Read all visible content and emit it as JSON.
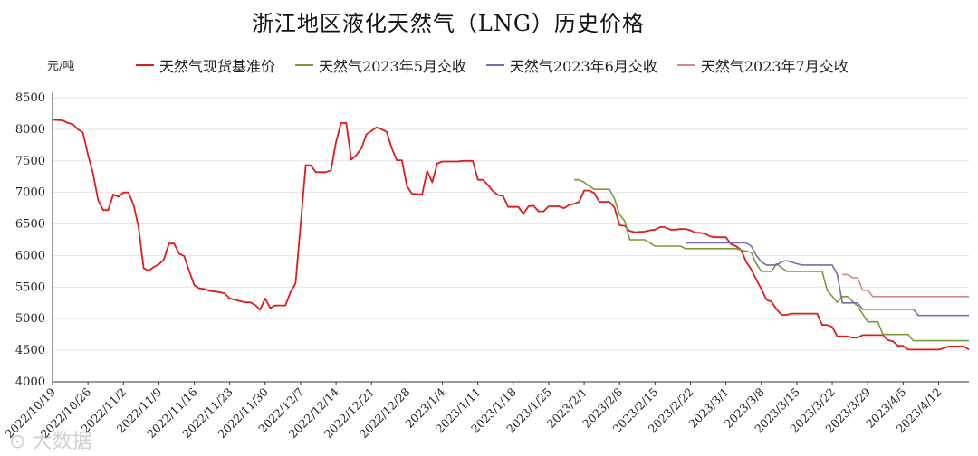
{
  "title": "浙江地区液化天然气（LNG）历史价格",
  "watermark": "⊙ 大数据",
  "chart_data": {
    "type": "line",
    "title": "浙江地区液化天然气（LNG）历史价格",
    "ylabel": "元/吨",
    "ylim": [
      4000,
      8500
    ],
    "xlim": [
      "2022-10-19",
      "2023-04-18"
    ],
    "yticks": [
      4000,
      4500,
      5000,
      5500,
      6000,
      6500,
      7000,
      7500,
      8000,
      8500
    ],
    "xticks": [
      "2022/10/19",
      "2022/10/26",
      "2022/11/2",
      "2022/11/9",
      "2022/11/16",
      "2022/11/23",
      "2022/11/30",
      "2022/12/7",
      "2022/12/14",
      "2022/12/21",
      "2022/12/28",
      "2023/1/4",
      "2023/1/11",
      "2023/1/18",
      "2023/1/25",
      "2023/2/1",
      "2023/2/8",
      "2023/2/15",
      "2023/2/22",
      "2023/3/1",
      "2023/3/8",
      "2023/3/15",
      "2023/3/22",
      "2023/3/29",
      "2023/4/5",
      "2023/4/12"
    ],
    "xtick_dates": [
      "2022-10-19",
      "2022-10-26",
      "2022-11-02",
      "2022-11-09",
      "2022-11-16",
      "2022-11-23",
      "2022-11-30",
      "2022-12-07",
      "2022-12-14",
      "2022-12-21",
      "2022-12-28",
      "2023-01-04",
      "2023-01-11",
      "2023-01-18",
      "2023-01-25",
      "2023-02-01",
      "2023-02-08",
      "2023-02-15",
      "2023-02-22",
      "2023-03-01",
      "2023-03-08",
      "2023-03-15",
      "2023-03-22",
      "2023-03-29",
      "2023-04-05",
      "2023-04-12"
    ],
    "grid": "horizontal",
    "legend_position": "top",
    "series": [
      {
        "name": "天然气现货基准价",
        "color": "#e01b1b",
        "points": [
          [
            "2022-10-19",
            8150
          ],
          [
            "2022-10-21",
            8140
          ],
          [
            "2022-10-22",
            8100
          ],
          [
            "2022-10-23",
            8080
          ],
          [
            "2022-10-24",
            8000
          ],
          [
            "2022-10-25",
            7950
          ],
          [
            "2022-10-26",
            7600
          ],
          [
            "2022-10-27",
            7300
          ],
          [
            "2022-10-28",
            6880
          ],
          [
            "2022-10-29",
            6720
          ],
          [
            "2022-10-30",
            6720
          ],
          [
            "2022-10-31",
            6970
          ],
          [
            "2022-11-01",
            6930
          ],
          [
            "2022-11-02",
            7000
          ],
          [
            "2022-11-03",
            7000
          ],
          [
            "2022-11-04",
            6800
          ],
          [
            "2022-11-05",
            6450
          ],
          [
            "2022-11-06",
            5800
          ],
          [
            "2022-11-07",
            5760
          ],
          [
            "2022-11-08",
            5820
          ],
          [
            "2022-11-09",
            5860
          ],
          [
            "2022-11-10",
            5940
          ],
          [
            "2022-11-11",
            6190
          ],
          [
            "2022-11-12",
            6190
          ],
          [
            "2022-11-13",
            6030
          ],
          [
            "2022-11-14",
            5990
          ],
          [
            "2022-11-15",
            5750
          ],
          [
            "2022-11-16",
            5530
          ],
          [
            "2022-11-17",
            5480
          ],
          [
            "2022-11-18",
            5470
          ],
          [
            "2022-11-19",
            5440
          ],
          [
            "2022-11-20",
            5430
          ],
          [
            "2022-11-21",
            5420
          ],
          [
            "2022-11-22",
            5400
          ],
          [
            "2022-11-23",
            5320
          ],
          [
            "2022-11-24",
            5300
          ],
          [
            "2022-11-25",
            5280
          ],
          [
            "2022-11-26",
            5260
          ],
          [
            "2022-11-27",
            5260
          ],
          [
            "2022-11-28",
            5220
          ],
          [
            "2022-11-29",
            5140
          ],
          [
            "2022-11-30",
            5320
          ],
          [
            "2022-12-01",
            5170
          ],
          [
            "2022-12-02",
            5210
          ],
          [
            "2022-12-03",
            5210
          ],
          [
            "2022-12-04",
            5210
          ],
          [
            "2022-12-05",
            5420
          ],
          [
            "2022-12-06",
            5560
          ],
          [
            "2022-12-07",
            6500
          ],
          [
            "2022-12-08",
            7430
          ],
          [
            "2022-12-09",
            7430
          ],
          [
            "2022-12-10",
            7320
          ],
          [
            "2022-12-12",
            7320
          ],
          [
            "2022-12-13",
            7350
          ],
          [
            "2022-12-14",
            7800
          ],
          [
            "2022-12-15",
            8100
          ],
          [
            "2022-12-16",
            8100
          ],
          [
            "2022-12-17",
            7520
          ],
          [
            "2022-12-18",
            7590
          ],
          [
            "2022-12-19",
            7700
          ],
          [
            "2022-12-20",
            7920
          ],
          [
            "2022-12-22",
            8030
          ],
          [
            "2022-12-23",
            8000
          ],
          [
            "2022-12-24",
            7960
          ],
          [
            "2022-12-25",
            7700
          ],
          [
            "2022-12-26",
            7510
          ],
          [
            "2022-12-27",
            7510
          ],
          [
            "2022-12-28",
            7100
          ],
          [
            "2022-12-29",
            6980
          ],
          [
            "2022-12-31",
            6970
          ],
          [
            "2023-01-01",
            7340
          ],
          [
            "2023-01-02",
            7160
          ],
          [
            "2023-01-03",
            7460
          ],
          [
            "2023-01-04",
            7490
          ],
          [
            "2023-01-07",
            7490
          ],
          [
            "2023-01-08",
            7500
          ],
          [
            "2023-01-10",
            7500
          ],
          [
            "2023-01-11",
            7200
          ],
          [
            "2023-01-12",
            7200
          ],
          [
            "2023-01-13",
            7120
          ],
          [
            "2023-01-14",
            7020
          ],
          [
            "2023-01-15",
            6960
          ],
          [
            "2023-01-16",
            6940
          ],
          [
            "2023-01-17",
            6770
          ],
          [
            "2023-01-19",
            6770
          ],
          [
            "2023-01-20",
            6660
          ],
          [
            "2023-01-21",
            6780
          ],
          [
            "2023-01-22",
            6790
          ],
          [
            "2023-01-23",
            6700
          ],
          [
            "2023-01-24",
            6700
          ],
          [
            "2023-01-25",
            6780
          ],
          [
            "2023-01-27",
            6780
          ],
          [
            "2023-01-28",
            6750
          ],
          [
            "2023-01-29",
            6800
          ],
          [
            "2023-01-30",
            6820
          ],
          [
            "2023-01-31",
            6850
          ],
          [
            "2023-02-01",
            7030
          ],
          [
            "2023-02-02",
            7030
          ],
          [
            "2023-02-03",
            6990
          ],
          [
            "2023-02-04",
            6850
          ],
          [
            "2023-02-05",
            6850
          ],
          [
            "2023-02-06",
            6850
          ],
          [
            "2023-02-07",
            6760
          ],
          [
            "2023-02-08",
            6480
          ],
          [
            "2023-02-09",
            6470
          ],
          [
            "2023-02-10",
            6390
          ],
          [
            "2023-02-11",
            6370
          ],
          [
            "2023-02-13",
            6380
          ],
          [
            "2023-02-14",
            6400
          ],
          [
            "2023-02-15",
            6410
          ],
          [
            "2023-02-16",
            6450
          ],
          [
            "2023-02-17",
            6450
          ],
          [
            "2023-02-18",
            6410
          ],
          [
            "2023-02-19",
            6410
          ],
          [
            "2023-02-20",
            6420
          ],
          [
            "2023-02-21",
            6420
          ],
          [
            "2023-02-22",
            6400
          ],
          [
            "2023-02-23",
            6360
          ],
          [
            "2023-02-24",
            6360
          ],
          [
            "2023-02-25",
            6340
          ],
          [
            "2023-02-26",
            6300
          ],
          [
            "2023-02-27",
            6290
          ],
          [
            "2023-03-01",
            6290
          ],
          [
            "2023-03-02",
            6180
          ],
          [
            "2023-03-03",
            6150
          ],
          [
            "2023-03-04",
            6090
          ],
          [
            "2023-03-05",
            5900
          ],
          [
            "2023-03-06",
            5780
          ],
          [
            "2023-03-07",
            5620
          ],
          [
            "2023-03-08",
            5470
          ],
          [
            "2023-03-09",
            5300
          ],
          [
            "2023-03-10",
            5270
          ],
          [
            "2023-03-11",
            5150
          ],
          [
            "2023-03-12",
            5060
          ],
          [
            "2023-03-13",
            5060
          ],
          [
            "2023-03-14",
            5080
          ],
          [
            "2023-03-19",
            5080
          ],
          [
            "2023-03-20",
            4900
          ],
          [
            "2023-03-21",
            4900
          ],
          [
            "2023-03-22",
            4870
          ],
          [
            "2023-03-23",
            4720
          ],
          [
            "2023-03-25",
            4720
          ],
          [
            "2023-03-26",
            4700
          ],
          [
            "2023-03-27",
            4700
          ],
          [
            "2023-03-28",
            4740
          ],
          [
            "2023-04-01",
            4740
          ],
          [
            "2023-04-02",
            4660
          ],
          [
            "2023-04-03",
            4640
          ],
          [
            "2023-04-04",
            4570
          ],
          [
            "2023-04-05",
            4570
          ],
          [
            "2023-04-06",
            4510
          ],
          [
            "2023-04-12",
            4510
          ],
          [
            "2023-04-13",
            4530
          ],
          [
            "2023-04-14",
            4560
          ],
          [
            "2023-04-17",
            4560
          ],
          [
            "2023-04-18",
            4510
          ]
        ]
      },
      {
        "name": "天然气2023年5月交收",
        "color": "#7a9a3a",
        "points": [
          [
            "2023-01-30",
            7200
          ],
          [
            "2023-01-31",
            7200
          ],
          [
            "2023-02-01",
            7160
          ],
          [
            "2023-02-02",
            7100
          ],
          [
            "2023-02-03",
            7050
          ],
          [
            "2023-02-06",
            7050
          ],
          [
            "2023-02-07",
            6900
          ],
          [
            "2023-02-08",
            6650
          ],
          [
            "2023-02-09",
            6550
          ],
          [
            "2023-02-10",
            6250
          ],
          [
            "2023-02-13",
            6250
          ],
          [
            "2023-02-14",
            6200
          ],
          [
            "2023-02-15",
            6150
          ],
          [
            "2023-02-20",
            6150
          ],
          [
            "2023-02-21",
            6110
          ],
          [
            "2023-03-03",
            6110
          ],
          [
            "2023-03-06",
            6050
          ],
          [
            "2023-03-07",
            5870
          ],
          [
            "2023-03-08",
            5750
          ],
          [
            "2023-03-10",
            5750
          ],
          [
            "2023-03-11",
            5870
          ],
          [
            "2023-03-13",
            5750
          ],
          [
            "2023-03-20",
            5750
          ],
          [
            "2023-03-21",
            5450
          ],
          [
            "2023-03-23",
            5260
          ],
          [
            "2023-03-24",
            5350
          ],
          [
            "2023-03-25",
            5350
          ],
          [
            "2023-03-27",
            5200
          ],
          [
            "2023-03-29",
            4950
          ],
          [
            "2023-03-31",
            4950
          ],
          [
            "2023-04-01",
            4750
          ],
          [
            "2023-04-06",
            4750
          ],
          [
            "2023-04-07",
            4650
          ],
          [
            "2023-04-18",
            4650
          ]
        ]
      },
      {
        "name": "天然气2023年6月交收",
        "color": "#7b68b0",
        "points": [
          [
            "2023-02-21",
            6200
          ],
          [
            "2023-03-05",
            6200
          ],
          [
            "2023-03-06",
            6150
          ],
          [
            "2023-03-07",
            6000
          ],
          [
            "2023-03-08",
            5900
          ],
          [
            "2023-03-09",
            5850
          ],
          [
            "2023-03-11",
            5850
          ],
          [
            "2023-03-12",
            5900
          ],
          [
            "2023-03-13",
            5920
          ],
          [
            "2023-03-15",
            5870
          ],
          [
            "2023-03-16",
            5850
          ],
          [
            "2023-03-22",
            5850
          ],
          [
            "2023-03-23",
            5700
          ],
          [
            "2023-03-24",
            5250
          ],
          [
            "2023-03-27",
            5250
          ],
          [
            "2023-03-28",
            5150
          ],
          [
            "2023-04-07",
            5150
          ],
          [
            "2023-04-08",
            5050
          ],
          [
            "2023-04-18",
            5050
          ]
        ]
      },
      {
        "name": "天然气2023年7月交收",
        "color": "#d4868a",
        "points": [
          [
            "2023-03-24",
            5700
          ],
          [
            "2023-03-25",
            5700
          ],
          [
            "2023-03-26",
            5650
          ],
          [
            "2023-03-27",
            5650
          ],
          [
            "2023-03-28",
            5450
          ],
          [
            "2023-03-29",
            5450
          ],
          [
            "2023-03-30",
            5350
          ],
          [
            "2023-04-18",
            5350
          ]
        ]
      }
    ]
  }
}
